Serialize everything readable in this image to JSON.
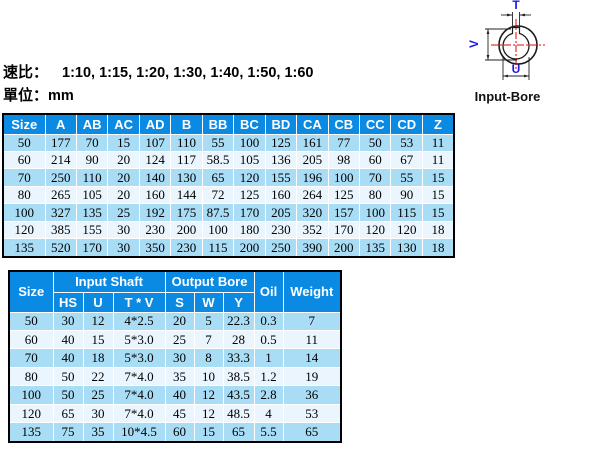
{
  "page": {
    "ratio_label": "速比：",
    "ratio_values": "1:10, 1:15, 1:20, 1:30, 1:40, 1:50, 1:60",
    "unit_label": "單位：",
    "unit_value": "mm"
  },
  "diagram": {
    "caption": "Input-Bore",
    "dim_top": "T",
    "dim_left": "V",
    "dim_bottom": "U",
    "label_color": "#1a1ae8",
    "centerline_color": "#e80000",
    "outline_color": "#1a1a1a"
  },
  "colors": {
    "header_bg": "#0b8ae4",
    "row_odd": "#a9ddf6",
    "row_even": "#eaf5fd",
    "grid": "#ffffff",
    "frame": "#000000"
  },
  "dimension_table": {
    "columns": [
      "Size",
      "A",
      "AB",
      "AC",
      "AD",
      "B",
      "BB",
      "BC",
      "BD",
      "CA",
      "CB",
      "CC",
      "CD",
      "Z"
    ],
    "rows": [
      [
        "50",
        "177",
        "70",
        "15",
        "107",
        "110",
        "55",
        "100",
        "125",
        "161",
        "77",
        "50",
        "53",
        "11"
      ],
      [
        "60",
        "214",
        "90",
        "20",
        "124",
        "117",
        "58.5",
        "105",
        "136",
        "205",
        "98",
        "60",
        "67",
        "11"
      ],
      [
        "70",
        "250",
        "110",
        "20",
        "140",
        "130",
        "65",
        "120",
        "155",
        "196",
        "100",
        "70",
        "55",
        "15"
      ],
      [
        "80",
        "265",
        "105",
        "20",
        "160",
        "144",
        "72",
        "125",
        "160",
        "264",
        "125",
        "80",
        "90",
        "15"
      ],
      [
        "100",
        "327",
        "135",
        "25",
        "192",
        "175",
        "87.5",
        "170",
        "205",
        "320",
        "157",
        "100",
        "115",
        "15"
      ],
      [
        "120",
        "385",
        "155",
        "30",
        "230",
        "200",
        "100",
        "180",
        "230",
        "352",
        "170",
        "120",
        "120",
        "18"
      ],
      [
        "135",
        "520",
        "170",
        "30",
        "350",
        "230",
        "115",
        "200",
        "250",
        "390",
        "200",
        "135",
        "130",
        "18"
      ]
    ]
  },
  "shaft_table": {
    "header": {
      "size": "Size",
      "input_shaft": "Input Shaft",
      "output_bore": "Output Bore",
      "oil": "Oil",
      "weight": "Weight",
      "sub": [
        "HS",
        "U",
        "T * V",
        "S",
        "W",
        "Y"
      ]
    },
    "rows": [
      [
        "50",
        "30",
        "12",
        "4*2.5",
        "20",
        "5",
        "22.3",
        "0.3",
        "7"
      ],
      [
        "60",
        "40",
        "15",
        "5*3.0",
        "25",
        "7",
        "28",
        "0.5",
        "11"
      ],
      [
        "70",
        "40",
        "18",
        "5*3.0",
        "30",
        "8",
        "33.3",
        "1",
        "14"
      ],
      [
        "80",
        "50",
        "22",
        "7*4.0",
        "35",
        "10",
        "38.5",
        "1.2",
        "19"
      ],
      [
        "100",
        "50",
        "25",
        "7*4.0",
        "40",
        "12",
        "43.5",
        "2.8",
        "36"
      ],
      [
        "120",
        "65",
        "30",
        "7*4.0",
        "45",
        "12",
        "48.5",
        "4",
        "53"
      ],
      [
        "135",
        "75",
        "35",
        "10*4.5",
        "60",
        "15",
        "65",
        "5.5",
        "65"
      ]
    ]
  }
}
